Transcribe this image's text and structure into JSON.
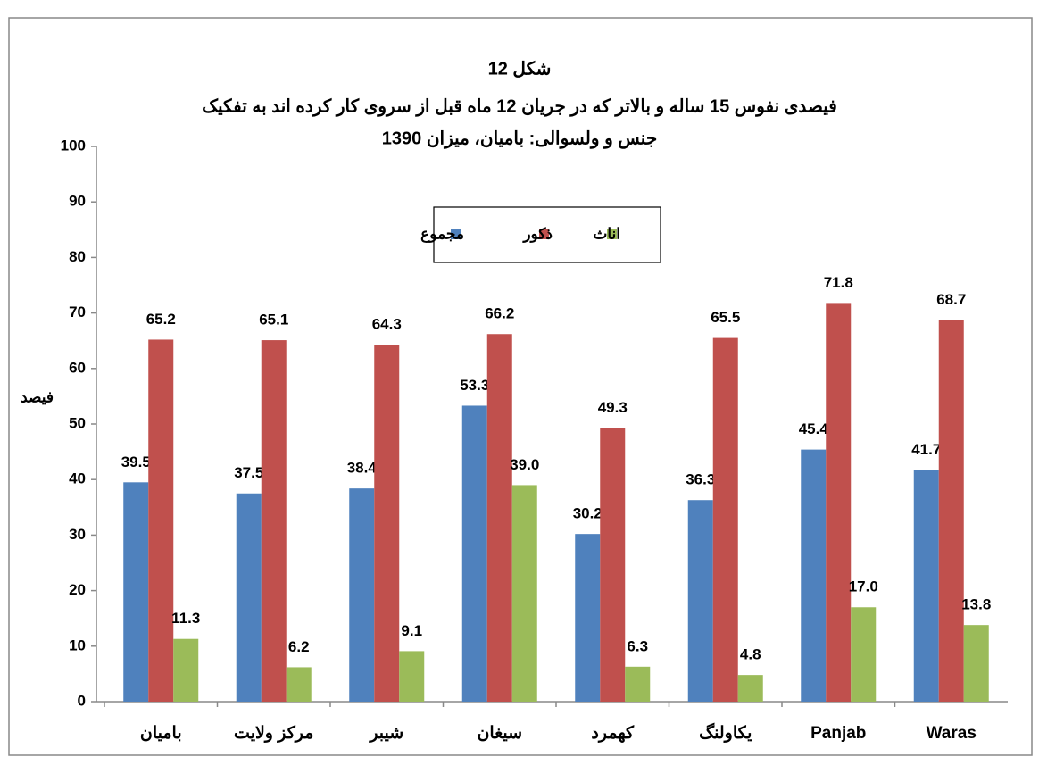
{
  "chart_data": {
    "type": "bar",
    "title": [
      "شکل 12",
      "فیصدی نفوس 15 ساله و بالاتر که در جریان 12 ماه قبل از سروی کار کرده اند به تفکیک",
      "جنس و ولسوالی: بامیان، میزان 1390"
    ],
    "y_label": "فیصد",
    "categories": [
      "بامیان",
      "مرکز ولایت",
      "شیبر",
      "سیغان",
      "کهمرد",
      "یکاولنگ",
      "Panjab",
      "Waras"
    ],
    "series": [
      {
        "name": "مجموع",
        "color": "#4f81bd",
        "values": [
          39.5,
          37.5,
          38.4,
          53.3,
          30.2,
          36.3,
          45.4,
          41.7
        ],
        "value_labels": [
          "39.5",
          "37.5",
          "38.4",
          "53.3",
          "30.2",
          "36.3",
          "45.4",
          "41.7"
        ]
      },
      {
        "name": "ذکور",
        "color": "#c0504d",
        "values": [
          65.2,
          65.1,
          64.3,
          66.2,
          49.3,
          65.5,
          71.8,
          68.7
        ],
        "value_labels": [
          "65.2",
          "65.1",
          "64.3",
          "66.2",
          "49.3",
          "65.5",
          "71.8",
          "68.7"
        ]
      },
      {
        "name": "اناث",
        "color": "#9bbb59",
        "values": [
          11.3,
          6.2,
          9.1,
          39.0,
          6.3,
          4.8,
          17.0,
          13.8
        ],
        "value_labels": [
          "11.3",
          "6.2",
          "9.1",
          "39.0",
          "6.3",
          "4.8",
          "17.0",
          "13.8"
        ]
      }
    ],
    "ylim": [
      0,
      100
    ],
    "yticks": [
      0,
      10,
      20,
      30,
      40,
      50,
      60,
      70,
      80,
      90,
      100
    ],
    "grid": false,
    "legend": "top"
  }
}
